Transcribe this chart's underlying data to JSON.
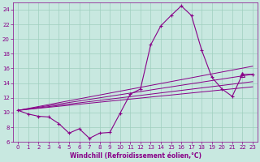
{
  "xlabel": "Windchill (Refroidissement éolien,°C)",
  "x_values": [
    0,
    1,
    2,
    3,
    4,
    5,
    6,
    7,
    8,
    9,
    10,
    11,
    12,
    13,
    14,
    15,
    16,
    17,
    18,
    19,
    20,
    21,
    22,
    23
  ],
  "y_main": [
    10.3,
    9.8,
    9.5,
    9.4,
    8.5,
    7.2,
    7.8,
    6.5,
    7.2,
    7.3,
    9.9,
    12.5,
    13.2,
    19.2,
    21.8,
    23.2,
    24.5,
    23.2,
    18.5,
    14.8,
    13.2,
    12.2,
    15.2,
    15.2
  ],
  "line_color": "#880088",
  "marker_color": "#880088",
  "bg_color": "#c8e8e0",
  "grid_color": "#9fcfbe",
  "ylim": [
    6,
    25
  ],
  "xlim": [
    -0.5,
    23.5
  ],
  "yticks": [
    6,
    8,
    10,
    12,
    14,
    16,
    18,
    20,
    22,
    24
  ],
  "xticks": [
    0,
    1,
    2,
    3,
    4,
    5,
    6,
    7,
    8,
    9,
    10,
    11,
    12,
    13,
    14,
    15,
    16,
    17,
    18,
    19,
    20,
    21,
    22,
    23
  ],
  "trend_lines": [
    {
      "x0": 0,
      "y0": 10.3,
      "x1": 23,
      "y1": 16.3
    },
    {
      "x0": 0,
      "y0": 10.3,
      "x1": 23,
      "y1": 15.2
    },
    {
      "x0": 0,
      "y0": 10.3,
      "x1": 23,
      "y1": 14.2
    },
    {
      "x0": 0,
      "y0": 10.3,
      "x1": 23,
      "y1": 13.5
    }
  ],
  "figsize": [
    3.2,
    2.0
  ],
  "dpi": 100
}
